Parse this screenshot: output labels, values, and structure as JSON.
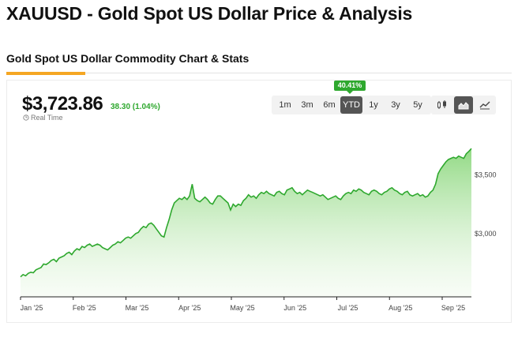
{
  "page": {
    "title": "XAUUSD - Gold Spot US Dollar Price & Analysis",
    "section_title": "Gold Spot US Dollar Commodity Chart & Stats"
  },
  "quote": {
    "price": "$3,723.86",
    "change": "38.30 (1.04%)",
    "realtime_label": "Real Time",
    "ytd_badge": "40.41%"
  },
  "ranges": [
    "1m",
    "3m",
    "6m",
    "YTD",
    "1y",
    "3y",
    "5y"
  ],
  "active_range": "YTD",
  "chart_types": [
    "candlestick-icon",
    "area-chart-icon",
    "line-chart-icon"
  ],
  "active_chart_type": "area-chart-icon",
  "colors": {
    "up": "#2ea82e",
    "accent": "#f5a623"
  },
  "chart_data": {
    "type": "area",
    "title": "",
    "xlabel": "",
    "ylabel": "",
    "x_ticks": [
      "Jan '25",
      "Feb '25",
      "Mar '25",
      "Apr '25",
      "May '25",
      "Jun '25",
      "Jul '25",
      "Aug '25",
      "Sep '25"
    ],
    "y_ticks": [
      3000,
      3500
    ],
    "y_tick_labels": [
      "$3,000",
      "$3,500"
    ],
    "ylim": [
      2460,
      3900
    ],
    "grid": false,
    "series": [
      {
        "values": [
          2630,
          2650,
          2640,
          2660,
          2670,
          2665,
          2690,
          2700,
          2710,
          2740,
          2735,
          2750,
          2770,
          2780,
          2760,
          2790,
          2800,
          2810,
          2830,
          2840,
          2820,
          2850,
          2870,
          2860,
          2890,
          2880,
          2900,
          2910,
          2890,
          2900,
          2910,
          2900,
          2880,
          2870,
          2860,
          2880,
          2900,
          2910,
          2930,
          2920,
          2940,
          2960,
          2970,
          2960,
          2980,
          3000,
          3010,
          3040,
          3060,
          3050,
          3080,
          3090,
          3070,
          3040,
          3010,
          2980,
          2970,
          3050,
          3120,
          3200,
          3260,
          3280,
          3300,
          3290,
          3310,
          3290,
          3320,
          3420,
          3300,
          3280,
          3270,
          3290,
          3310,
          3290,
          3260,
          3250,
          3290,
          3320,
          3320,
          3300,
          3280,
          3260,
          3200,
          3250,
          3230,
          3250,
          3240,
          3280,
          3300,
          3330,
          3310,
          3320,
          3300,
          3330,
          3350,
          3340,
          3360,
          3340,
          3330,
          3320,
          3350,
          3360,
          3340,
          3330,
          3370,
          3380,
          3390,
          3360,
          3340,
          3350,
          3330,
          3350,
          3370,
          3360,
          3350,
          3340,
          3330,
          3320,
          3330,
          3310,
          3290,
          3300,
          3310,
          3320,
          3300,
          3290,
          3320,
          3340,
          3350,
          3340,
          3370,
          3360,
          3380,
          3370,
          3350,
          3340,
          3330,
          3360,
          3370,
          3360,
          3340,
          3330,
          3350,
          3360,
          3380,
          3390,
          3370,
          3360,
          3340,
          3330,
          3350,
          3360,
          3330,
          3320,
          3330,
          3340,
          3320,
          3330,
          3310,
          3320,
          3350,
          3370,
          3420,
          3510,
          3550,
          3580,
          3610,
          3630,
          3640,
          3650,
          3640,
          3660,
          3650,
          3640,
          3680,
          3700,
          3724
        ]
      }
    ]
  }
}
